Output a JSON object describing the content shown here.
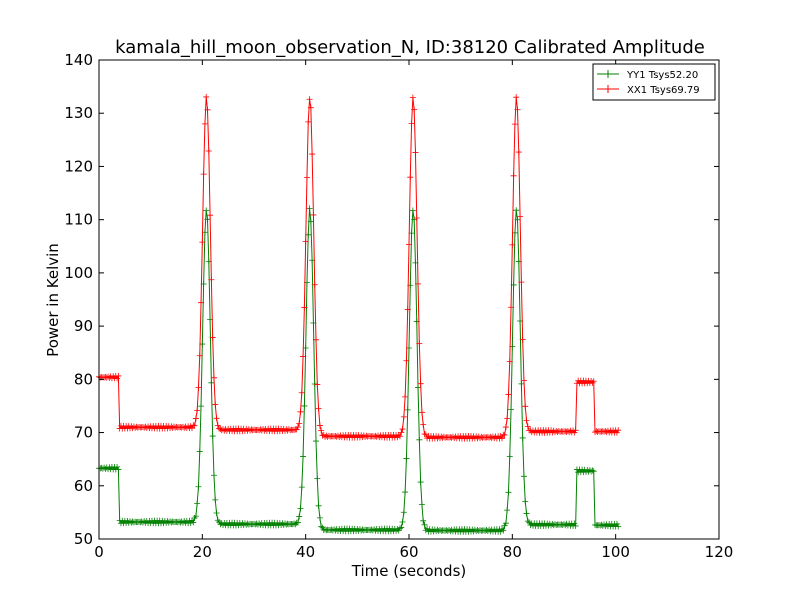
{
  "chart_data": {
    "type": "line",
    "title": "kamala_hill_moon_observation_N, ID:38120 Calibrated Amplitude",
    "xlabel": "Time (seconds)",
    "ylabel": "Power in Kelvin",
    "xlim": [
      0,
      120
    ],
    "ylim": [
      50,
      140
    ],
    "x_ticks": [
      0,
      20,
      40,
      60,
      80,
      100,
      120
    ],
    "y_ticks": [
      50,
      60,
      70,
      80,
      90,
      100,
      110,
      120,
      130,
      140
    ],
    "grid": false,
    "legend_position": "top-right",
    "peak_centers": [
      20.8,
      40.8,
      60.8,
      80.8
    ],
    "series": [
      {
        "name": "YY1 Tsys52.20",
        "color": "#008000",
        "marker": "+",
        "peak_value": 112,
        "step_segments": [
          {
            "from": 0,
            "to": 4,
            "value": 63.3
          },
          {
            "from": 4,
            "to": 18,
            "value": 53.2
          },
          {
            "from": 23,
            "to": 38,
            "value": 52.8
          },
          {
            "from": 43,
            "to": 58,
            "value": 51.7
          },
          {
            "from": 63,
            "to": 78,
            "value": 51.6
          },
          {
            "from": 83,
            "to": 92.5,
            "value": 52.7
          },
          {
            "from": 92.5,
            "to": 96,
            "value": 62.8
          },
          {
            "from": 96,
            "to": 100.5,
            "value": 52.6
          }
        ]
      },
      {
        "name": "XX1 Tsys69.79",
        "color": "#ff0000",
        "marker": "+",
        "peak_value": 133,
        "step_segments": [
          {
            "from": 0,
            "to": 4,
            "value": 80.4
          },
          {
            "from": 4,
            "to": 18,
            "value": 71.0
          },
          {
            "from": 23,
            "to": 38,
            "value": 70.5
          },
          {
            "from": 43,
            "to": 58,
            "value": 69.3
          },
          {
            "from": 63,
            "to": 78,
            "value": 69.1
          },
          {
            "from": 83,
            "to": 92.5,
            "value": 70.2
          },
          {
            "from": 92.5,
            "to": 96,
            "value": 79.5
          },
          {
            "from": 96,
            "to": 100.5,
            "value": 70.2
          }
        ]
      }
    ]
  }
}
